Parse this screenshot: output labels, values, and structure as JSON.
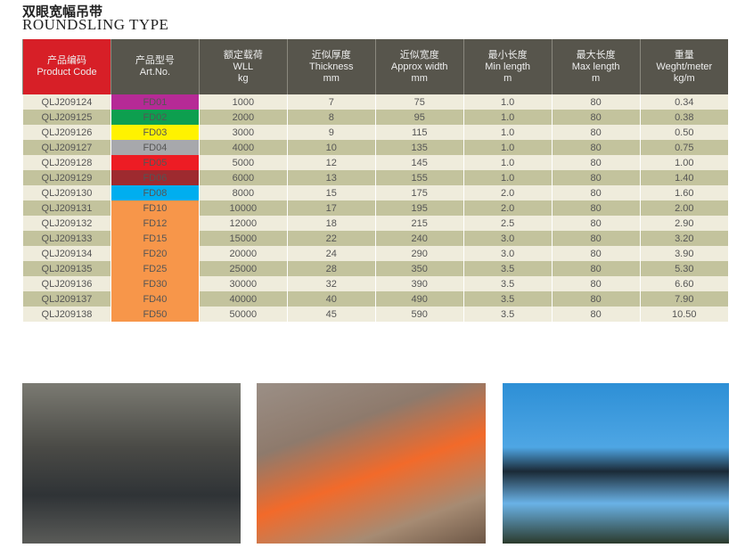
{
  "title_cn": "双眼宽幅吊带",
  "title_en": "ROUNDSLING TYPE",
  "headers": [
    {
      "cn": "产品编码",
      "en": "Product Code",
      "unit": ""
    },
    {
      "cn": "产品型号",
      "en": "Art.No.",
      "unit": ""
    },
    {
      "cn": "额定载荷",
      "en": "WLL",
      "unit": "kg"
    },
    {
      "cn": "近似厚度",
      "en": "Thickness",
      "unit": "mm"
    },
    {
      "cn": "近似宽度",
      "en": "Approx width",
      "unit": "mm"
    },
    {
      "cn": "最小长度",
      "en": "Min length",
      "unit": "m"
    },
    {
      "cn": "最大长度",
      "en": "Max length",
      "unit": "m"
    },
    {
      "cn": "重量",
      "en": "Weght/meter",
      "unit": "kg/m"
    }
  ],
  "colors": {
    "header_red": "#d71f27",
    "header_gray": "#57554c"
  },
  "rows": [
    [
      "QLJ209124",
      "FD01",
      "1000",
      "7",
      "75",
      "1.0",
      "80",
      "0.34",
      "#b62a96"
    ],
    [
      "QLJ209125",
      "FD02",
      "2000",
      "8",
      "95",
      "1.0",
      "80",
      "0.38",
      "#0d9f4f"
    ],
    [
      "QLJ209126",
      "FD03",
      "3000",
      "9",
      "115",
      "1.0",
      "80",
      "0.50",
      "#fff200"
    ],
    [
      "QLJ209127",
      "FD04",
      "4000",
      "10",
      "135",
      "1.0",
      "80",
      "0.75",
      "#a7a8ac"
    ],
    [
      "QLJ209128",
      "FD05",
      "5000",
      "12",
      "145",
      "1.0",
      "80",
      "1.00",
      "#ed1c24"
    ],
    [
      "QLJ209129",
      "FD06",
      "6000",
      "13",
      "155",
      "1.0",
      "80",
      "1.40",
      "#9e2a2f"
    ],
    [
      "QLJ209130",
      "FD08",
      "8000",
      "15",
      "175",
      "2.0",
      "80",
      "1.60",
      "#00aeef"
    ],
    [
      "QLJ209131",
      "FD10",
      "10000",
      "17",
      "195",
      "2.0",
      "80",
      "2.00",
      "#f7964a"
    ],
    [
      "QLJ209132",
      "FD12",
      "12000",
      "18",
      "215",
      "2.5",
      "80",
      "2.90",
      "#f7964a"
    ],
    [
      "QLJ209133",
      "FD15",
      "15000",
      "22",
      "240",
      "3.0",
      "80",
      "3.20",
      "#f7964a"
    ],
    [
      "QLJ209134",
      "FD20",
      "20000",
      "24",
      "290",
      "3.0",
      "80",
      "3.90",
      "#f7964a"
    ],
    [
      "QLJ209135",
      "FD25",
      "25000",
      "28",
      "350",
      "3.5",
      "80",
      "5.30",
      "#f7964a"
    ],
    [
      "QLJ209136",
      "FD30",
      "30000",
      "32",
      "390",
      "3.5",
      "80",
      "6.60",
      "#f7964a"
    ],
    [
      "QLJ209137",
      "FD40",
      "40000",
      "40",
      "490",
      "3.5",
      "80",
      "7.90",
      "#f7964a"
    ],
    [
      "QLJ209138",
      "FD50",
      "50000",
      "45",
      "590",
      "3.5",
      "80",
      "10.50",
      "#f7964a"
    ]
  ]
}
